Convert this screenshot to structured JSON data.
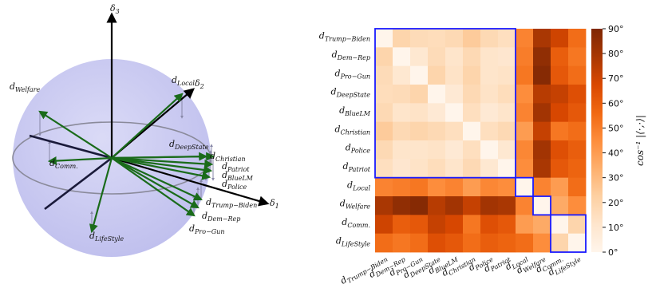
{
  "chart_data": [
    {
      "type": "3d-vector-plot",
      "axes": [
        {
          "key": "d3",
          "label": "δ",
          "sub": "3"
        },
        {
          "key": "d2",
          "label": "δ",
          "sub": "2"
        },
        {
          "key": "d1",
          "label": "δ",
          "sub": "1"
        }
      ],
      "vectors": [
        {
          "key": "welfare",
          "label": "d",
          "sub": "Welfare"
        },
        {
          "key": "local",
          "label": "d",
          "sub": "Local"
        },
        {
          "key": "deepstate",
          "label": "d",
          "sub": "DeepState"
        },
        {
          "key": "christian",
          "label": "d",
          "sub": "Christian"
        },
        {
          "key": "patriot",
          "label": "d",
          "sub": "Patriot"
        },
        {
          "key": "bluelm",
          "label": "d",
          "sub": "BlueLM"
        },
        {
          "key": "police",
          "label": "d",
          "sub": "Police"
        },
        {
          "key": "comm",
          "label": "d",
          "sub": "Comm."
        },
        {
          "key": "trump",
          "label": "d",
          "sub": "Trump−Biden"
        },
        {
          "key": "demrep",
          "label": "d",
          "sub": "Dem−Rep"
        },
        {
          "key": "progun",
          "label": "d",
          "sub": "Pro−Gun"
        },
        {
          "key": "lifestyle",
          "label": "d",
          "sub": "LifeStyle"
        }
      ]
    },
    {
      "type": "heatmap",
      "labels": [
        {
          "main": "d",
          "sub": "Trump−Biden"
        },
        {
          "main": "d",
          "sub": "Dem−Rep"
        },
        {
          "main": "d",
          "sub": "Pro−Gun"
        },
        {
          "main": "d",
          "sub": "DeepState"
        },
        {
          "main": "d",
          "sub": "BlueLM"
        },
        {
          "main": "d",
          "sub": "Christian"
        },
        {
          "main": "d",
          "sub": "Police"
        },
        {
          "main": "d",
          "sub": "Patriot"
        },
        {
          "main": "d",
          "sub": "Local"
        },
        {
          "main": "d",
          "sub": "Welfare"
        },
        {
          "main": "d",
          "sub": "Comm."
        },
        {
          "main": "d",
          "sub": "LifeStyle"
        }
      ],
      "values": [
        [
          0,
          20,
          17,
          16,
          18,
          24,
          18,
          15,
          48,
          78,
          70,
          55
        ],
        [
          20,
          0,
          10,
          17,
          12,
          18,
          12,
          11,
          50,
          85,
          60,
          52
        ],
        [
          17,
          10,
          0,
          20,
          13,
          20,
          12,
          13,
          52,
          88,
          62,
          55
        ],
        [
          16,
          17,
          20,
          0,
          9,
          18,
          13,
          16,
          45,
          75,
          72,
          65
        ],
        [
          18,
          12,
          13,
          9,
          0,
          15,
          9,
          12,
          48,
          80,
          68,
          62
        ],
        [
          24,
          18,
          20,
          18,
          15,
          0,
          15,
          18,
          40,
          72,
          52,
          55
        ],
        [
          18,
          12,
          12,
          13,
          9,
          15,
          0,
          10,
          47,
          80,
          65,
          60
        ],
        [
          15,
          11,
          13,
          16,
          12,
          18,
          10,
          0,
          45,
          78,
          62,
          58
        ],
        [
          48,
          50,
          52,
          45,
          48,
          40,
          47,
          45,
          0,
          48,
          40,
          55
        ],
        [
          78,
          85,
          88,
          75,
          80,
          72,
          80,
          78,
          48,
          0,
          35,
          45
        ],
        [
          70,
          60,
          62,
          72,
          68,
          52,
          65,
          62,
          40,
          35,
          0,
          20
        ],
        [
          55,
          52,
          55,
          65,
          62,
          55,
          60,
          58,
          55,
          45,
          20,
          0
        ]
      ],
      "groups": [
        [
          0,
          7
        ],
        [
          8,
          8
        ],
        [
          9,
          9
        ],
        [
          10,
          11
        ]
      ],
      "colorbar": {
        "range": [
          0,
          90
        ],
        "ticks": [
          "0°",
          "10°",
          "20°",
          "30°",
          "40°",
          "50°",
          "60°",
          "70°",
          "80°",
          "90°"
        ],
        "label": "cos⁻¹ |⟨·,·⟩|",
        "colormap": "Oranges"
      }
    }
  ]
}
